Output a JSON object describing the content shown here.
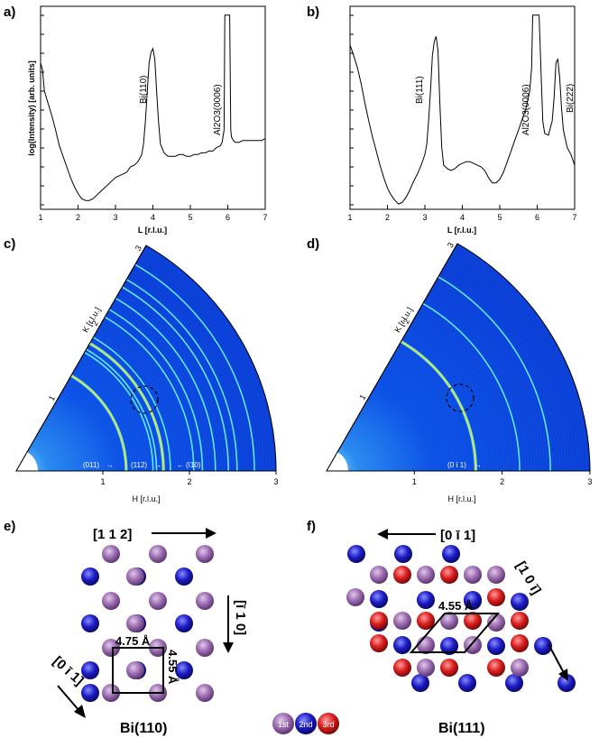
{
  "panels": {
    "a": "a)",
    "b": "b)",
    "c": "c)",
    "d": "d)",
    "e": "e)",
    "f": "f)"
  },
  "chart_data": [
    {
      "type": "line",
      "panel": "a)",
      "xlabel": "L [r.l.u.]",
      "ylabel": "log(Intensity) [arb. units]",
      "xlim": [
        1,
        7
      ],
      "xticks": [
        "1",
        "2",
        "3",
        "4",
        "5",
        "6",
        "7"
      ],
      "annotations": [
        "Bi(110)",
        "Al2O3(0006)"
      ],
      "x": [
        1.0,
        1.05,
        1.1,
        1.2,
        1.3,
        1.4,
        1.5,
        1.6,
        1.7,
        1.8,
        1.9,
        2.0,
        2.1,
        2.2,
        2.3,
        2.4,
        2.5,
        2.6,
        2.7,
        2.8,
        2.9,
        3.0,
        3.1,
        3.2,
        3.3,
        3.4,
        3.5,
        3.6,
        3.7,
        3.75,
        3.8,
        3.85,
        3.9,
        3.95,
        4.0,
        4.05,
        4.1,
        4.15,
        4.2,
        4.3,
        4.4,
        4.5,
        4.6,
        4.7,
        4.8,
        4.9,
        5.0,
        5.1,
        5.2,
        5.3,
        5.4,
        5.5,
        5.6,
        5.7,
        5.8,
        5.85,
        5.9,
        5.92,
        5.95,
        6.0,
        6.05,
        6.08,
        6.1,
        6.15,
        6.2,
        6.3,
        6.4,
        6.5,
        6.6,
        6.7,
        6.8,
        6.9,
        7.0
      ],
      "y": [
        0.78,
        0.74,
        0.62,
        0.55,
        0.48,
        0.4,
        0.31,
        0.25,
        0.19,
        0.13,
        0.08,
        0.04,
        0.01,
        0.0,
        0.0,
        0.01,
        0.03,
        0.05,
        0.07,
        0.09,
        0.11,
        0.13,
        0.14,
        0.15,
        0.16,
        0.19,
        0.2,
        0.22,
        0.26,
        0.32,
        0.45,
        0.62,
        0.78,
        0.84,
        0.86,
        0.8,
        0.62,
        0.45,
        0.32,
        0.27,
        0.25,
        0.25,
        0.25,
        0.26,
        0.26,
        0.25,
        0.25,
        0.26,
        0.26,
        0.27,
        0.27,
        0.28,
        0.28,
        0.3,
        0.31,
        0.33,
        0.4,
        1.05,
        1.05,
        1.05,
        1.05,
        0.4,
        0.36,
        0.34,
        0.33,
        0.33,
        0.34,
        0.34,
        0.34,
        0.34,
        0.34,
        0.34,
        0.35
      ]
    },
    {
      "type": "line",
      "panel": "b)",
      "xlabel": "L [r.l.u.]",
      "ylabel": "",
      "xlim": [
        1,
        7
      ],
      "xticks": [
        "1",
        "2",
        "3",
        "4",
        "5",
        "6",
        "7"
      ],
      "annotations": [
        "Bi(111)",
        "Al2O3(0006)",
        "Bi(222)"
      ],
      "x": [
        1.0,
        1.05,
        1.1,
        1.2,
        1.3,
        1.4,
        1.5,
        1.6,
        1.7,
        1.8,
        1.9,
        2.0,
        2.1,
        2.2,
        2.3,
        2.4,
        2.5,
        2.6,
        2.7,
        2.8,
        2.9,
        3.0,
        3.05,
        3.1,
        3.15,
        3.2,
        3.25,
        3.3,
        3.35,
        3.4,
        3.45,
        3.5,
        3.6,
        3.7,
        3.8,
        3.9,
        4.0,
        4.1,
        4.2,
        4.3,
        4.4,
        4.5,
        4.6,
        4.7,
        4.8,
        4.9,
        5.0,
        5.1,
        5.2,
        5.3,
        5.4,
        5.5,
        5.6,
        5.7,
        5.8,
        5.85,
        5.88,
        5.9,
        5.95,
        6.0,
        6.05,
        6.1,
        6.15,
        6.2,
        6.3,
        6.4,
        6.45,
        6.5,
        6.55,
        6.6,
        6.65,
        6.7,
        6.8,
        6.9,
        7.0
      ],
      "y": [
        0.88,
        0.85,
        0.82,
        0.75,
        0.66,
        0.55,
        0.45,
        0.36,
        0.28,
        0.2,
        0.13,
        0.07,
        0.03,
        0.0,
        -0.02,
        -0.01,
        0.02,
        0.06,
        0.11,
        0.15,
        0.2,
        0.26,
        0.32,
        0.45,
        0.62,
        0.82,
        0.9,
        0.93,
        0.85,
        0.55,
        0.3,
        0.2,
        0.18,
        0.17,
        0.18,
        0.2,
        0.21,
        0.22,
        0.22,
        0.21,
        0.2,
        0.19,
        0.17,
        0.13,
        0.1,
        0.1,
        0.12,
        0.16,
        0.22,
        0.28,
        0.34,
        0.4,
        0.46,
        0.52,
        0.62,
        0.75,
        1.05,
        1.05,
        1.05,
        1.05,
        1.05,
        0.75,
        0.45,
        0.38,
        0.37,
        0.45,
        0.58,
        0.78,
        0.8,
        0.7,
        0.52,
        0.4,
        0.3,
        0.26,
        0.2
      ]
    },
    {
      "type": "heatmap",
      "panel": "c)",
      "xlabel": "H [r.l.u.]",
      "ylabel": "K [r.l.u.]",
      "xlim": [
        0,
        3
      ],
      "xticks": [
        "1",
        "2",
        "3"
      ],
      "radial_ticks": [
        "1",
        "2",
        "3"
      ],
      "ring_radii": [
        1.27,
        1.58,
        1.62,
        1.7,
        1.78,
        2.05,
        2.15,
        2.3,
        2.45,
        2.55,
        2.75
      ],
      "ring_labels": [
        "(011)",
        "(112)",
        "(ī10)"
      ]
    },
    {
      "type": "heatmap",
      "panel": "d)",
      "xlabel": "H [r.l.u.]",
      "ylabel": "K [r.l.u.]",
      "xlim": [
        0,
        3
      ],
      "xticks": [
        "1",
        "2",
        "3"
      ],
      "radial_ticks": [
        "1",
        "2",
        "3"
      ],
      "ring_radii": [
        1.7,
        2.2,
        2.55
      ],
      "ring_labels": [
        "(0 ī 1)"
      ]
    }
  ],
  "lattice_e": {
    "dir_top": "[1 1 2]",
    "dir_right": "[ī 1 0]",
    "dir_left": "[0 ī 1]",
    "dim_a": "4.75 Å",
    "dim_b": "4.55 Å",
    "label": "Bi(110)"
  },
  "lattice_f": {
    "dir_top": "[0 ī 1]",
    "dir_right": "[1 0 ī]",
    "dim": "4.55 Å",
    "label": "Bi(111)"
  },
  "legend": {
    "first": "1st",
    "second": "2nd",
    "third": "3rd"
  },
  "colors": {
    "first": "#9b6bb0",
    "second": "#1c1cc4",
    "third": "#d81e1e",
    "map_bg": "#0a46e0",
    "map_ring": "#64e8f0",
    "map_hot": "#f0e020"
  }
}
